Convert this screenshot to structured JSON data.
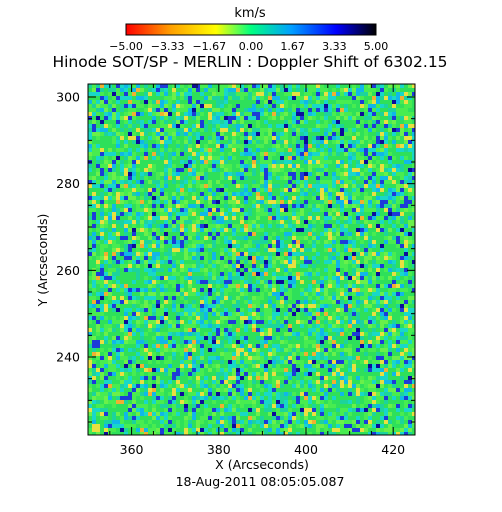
{
  "chart_data": {
    "type": "heatmap",
    "title": "Hinode SOT/SP - MERLIN : Doppler Shift of 6302.15",
    "colorbar": {
      "label": "km/s",
      "range": [
        -5.0,
        5.0
      ],
      "tick_labels": [
        "-5.00",
        "-3.33",
        "-1.67",
        "0.00",
        "1.67",
        "3.33",
        "5.00"
      ],
      "colors": [
        "#ff0000",
        "#ffa000",
        "#ffff00",
        "#00ff80",
        "#00a0ff",
        "#0000ff",
        "#000000"
      ]
    },
    "xlabel": "X (Arcseconds)",
    "ylabel": "Y (Arcseconds)",
    "xlim": [
      350,
      425
    ],
    "ylim": [
      222,
      303
    ],
    "xticks": [
      {
        "value": 360,
        "label": "360"
      },
      {
        "value": 380,
        "label": "380"
      },
      {
        "value": 400,
        "label": "400"
      },
      {
        "value": 420,
        "label": "420"
      }
    ],
    "yticks": [
      {
        "value": 240,
        "label": "240"
      },
      {
        "value": 260,
        "label": "260"
      },
      {
        "value": 280,
        "label": "280"
      },
      {
        "value": 300,
        "label": "300"
      }
    ],
    "date_label": "18-Aug-2011 08:05:05.087",
    "grid": false,
    "dominant_colors": [
      "#3ce85a",
      "#18d8c8",
      "#1c3cd8",
      "#e8e040"
    ]
  }
}
